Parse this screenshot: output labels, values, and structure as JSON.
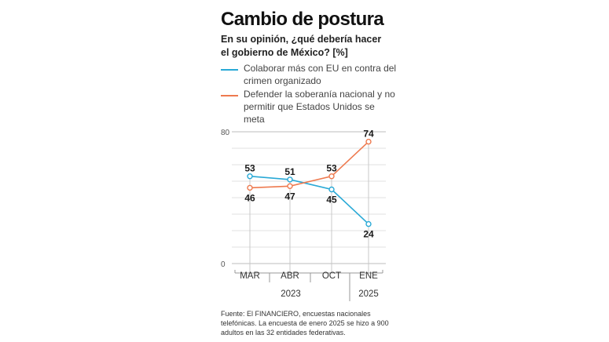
{
  "title": "Cambio de postura",
  "subtitle": "En su opinión, ¿qué debería hacer el gobierno de México? [%]",
  "legend": [
    {
      "label": "Colaborar más con EU en contra del crimen organizado",
      "color": "#29a9d6"
    },
    {
      "label": "Defender la soberanía nacional  y no  permitir que Estados Unidos se meta",
      "color": "#ee7a4f"
    }
  ],
  "source": "Fuente: El FINANCIERO, encuestas nacionales telefónicas. La encuesta de enero 2025 se hizo a 900 adultos en las 32 entidades federativas.",
  "chart_data": {
    "type": "line",
    "categories": [
      "MAR",
      "ABR",
      "OCT",
      "ENE"
    ],
    "year_groups": [
      {
        "label": "2023",
        "categories": [
          "MAR",
          "ABR",
          "OCT"
        ]
      },
      {
        "label": "2025",
        "categories": [
          "ENE"
        ]
      }
    ],
    "ylim": [
      0,
      80
    ],
    "yticks": [
      "0",
      "80"
    ],
    "grid": true,
    "series": [
      {
        "name": "Colaborar más con EU en contra del crimen organizado",
        "color": "#29a9d6",
        "values": [
          53,
          51,
          45,
          24
        ]
      },
      {
        "name": "Defender la soberanía nacional  y no  permitir que Estados Unidos se meta",
        "color": "#ee7a4f",
        "values": [
          46,
          47,
          53,
          74
        ]
      }
    ]
  }
}
